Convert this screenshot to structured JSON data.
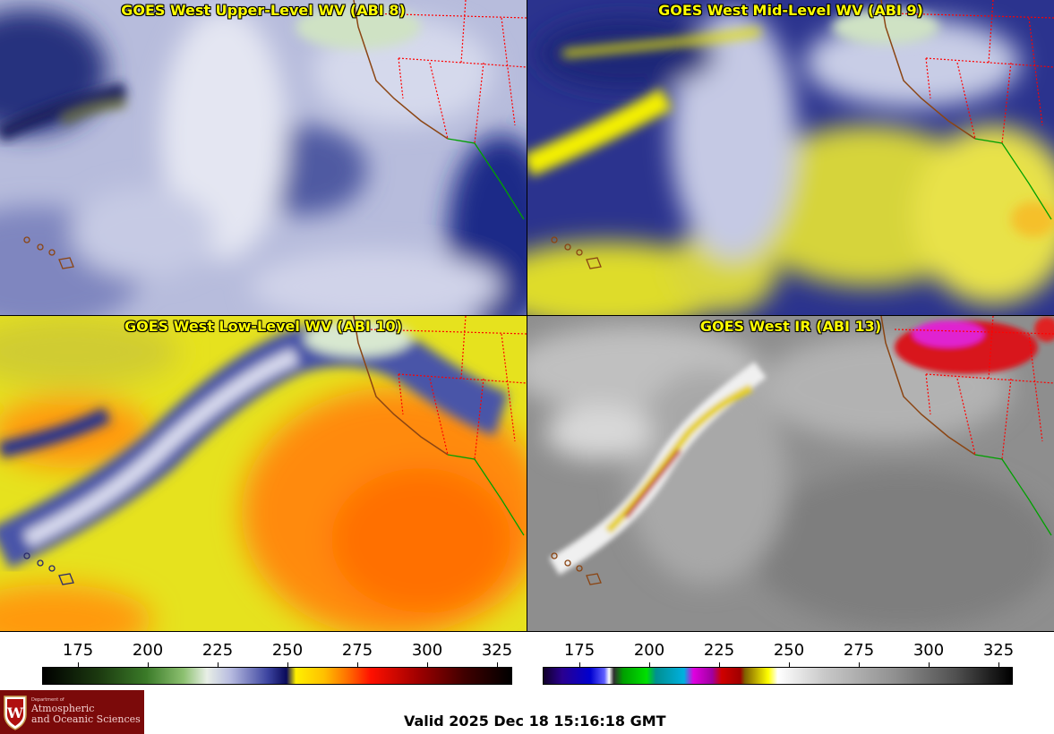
{
  "panels": [
    {
      "id": "upper",
      "title": "GOES West Upper-Level WV (ABI 8)"
    },
    {
      "id": "mid",
      "title": "GOES West Mid-Level WV (ABI 9)"
    },
    {
      "id": "low",
      "title": "GOES West Low-Level WV (ABI 10)"
    },
    {
      "id": "ir",
      "title": "GOES West IR (ABI 13)"
    }
  ],
  "colorbar_wv": {
    "ticks": [
      "175",
      "200",
      "225",
      "250",
      "275",
      "300",
      "325"
    ]
  },
  "colorbar_ir": {
    "ticks": [
      "175",
      "200",
      "225",
      "250",
      "275",
      "300",
      "325"
    ]
  },
  "logo": {
    "department": "Department of",
    "name_line1": "Atmospheric",
    "name_line2": "and Oceanic Sciences"
  },
  "valid_time": "Valid 2025 Dec 18 15:16:18 GMT",
  "colors": {
    "title": "#ffff00",
    "state_borders": "#ff0000",
    "coastline": "#8b4513",
    "mexico_coast": "#00a000"
  }
}
